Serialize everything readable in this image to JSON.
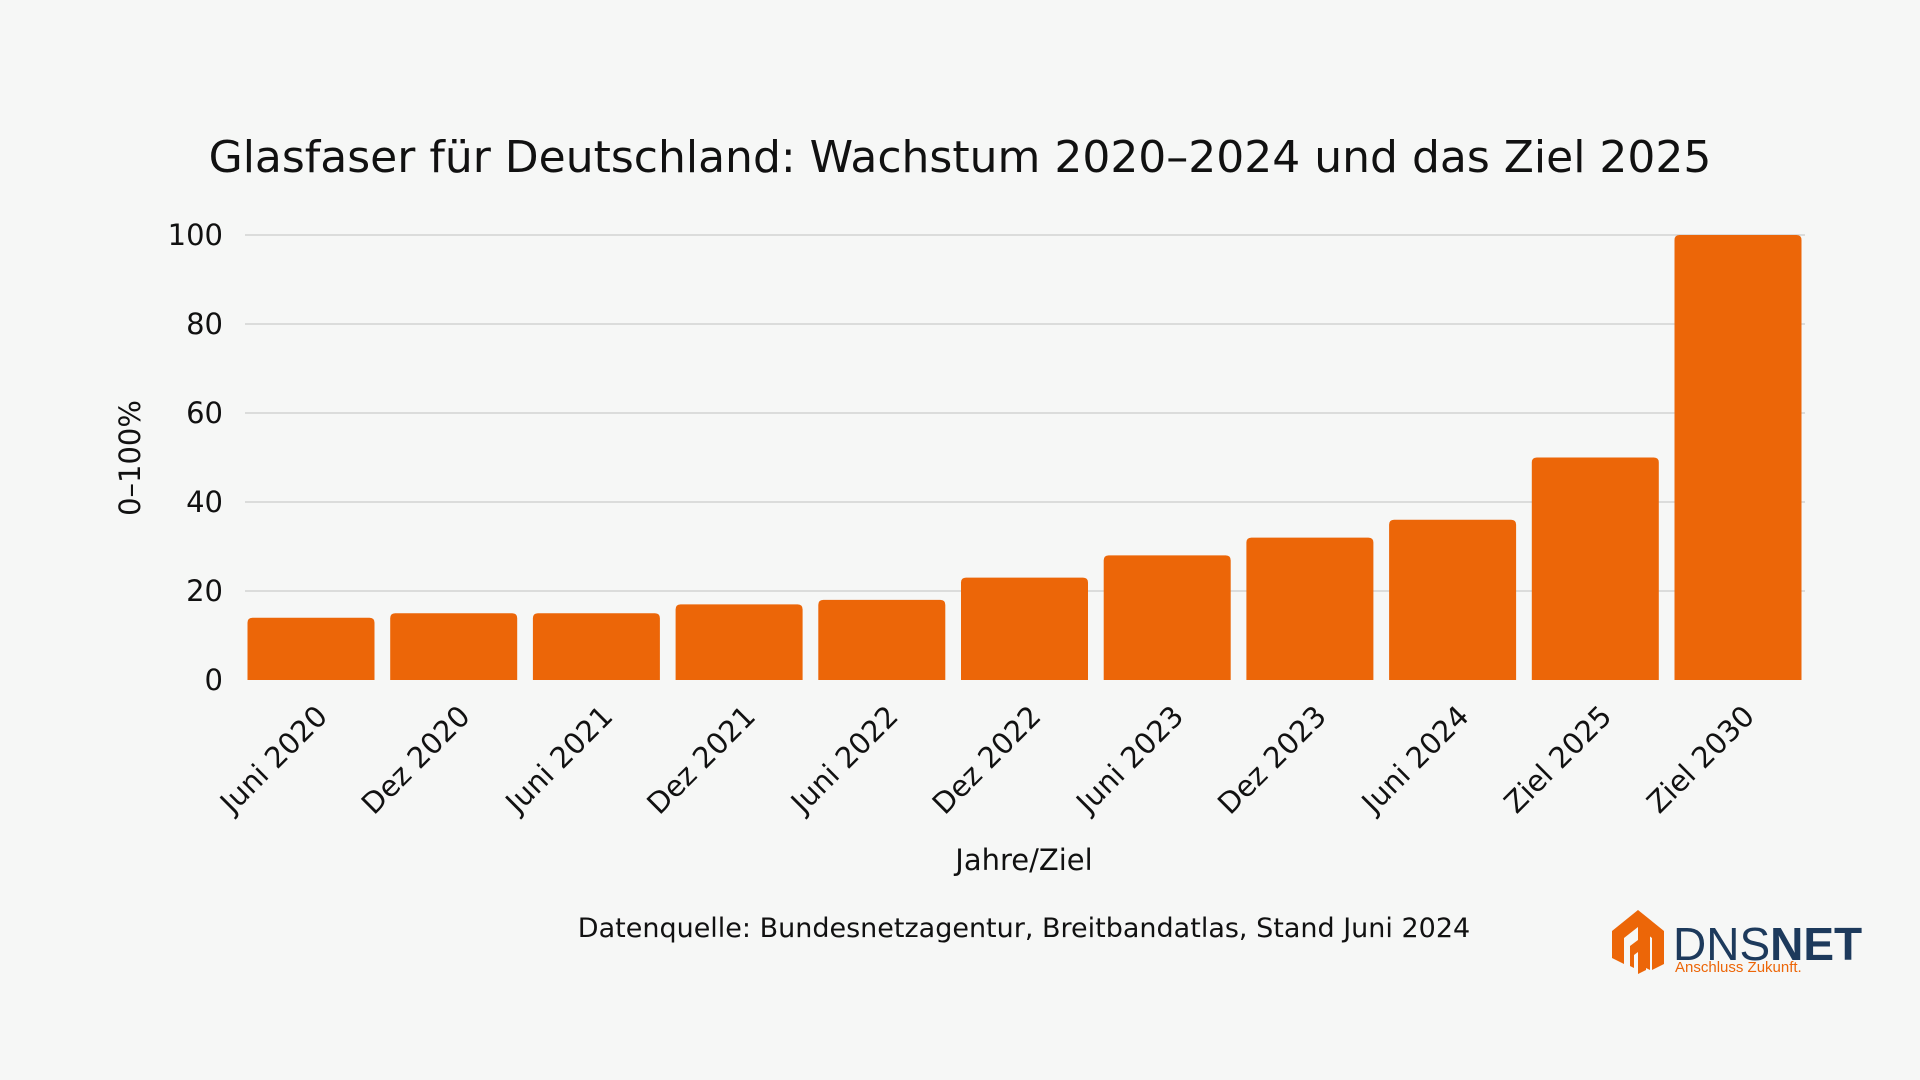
{
  "chart_data": {
    "type": "bar",
    "title": "Glasfaser für Deutschland: Wachstum 2020–2024 und das Ziel 2025",
    "xlabel": "Jahre/Ziel",
    "ylabel": "0–100%",
    "ylim": [
      0,
      100
    ],
    "yticks": [
      0,
      20,
      40,
      60,
      80,
      100
    ],
    "grid": true,
    "categories": [
      "Juni 2020",
      "Dez 2020",
      "Juni 2021",
      "Dez 2021",
      "Juni 2022",
      "Dez 2022",
      "Juni 2023",
      "Dez 2023",
      "Juni 2024",
      "Ziel 2025",
      "Ziel 2030"
    ],
    "values": [
      14,
      15,
      15,
      17,
      18,
      23,
      28,
      32,
      36,
      50,
      100
    ],
    "bar_color": "#ec6608",
    "grid_color": "#d2d4d2"
  },
  "source_note": "Datenquelle: Bundesnetzagentur, Breitbandatlas, Stand Juni 2024",
  "logo": {
    "name_part1": "DNS",
    "name_part2": "NET",
    "tagline": "Anschluss Zukunft.",
    "primary_color": "#1d3a5c",
    "accent_color": "#ec6608"
  }
}
